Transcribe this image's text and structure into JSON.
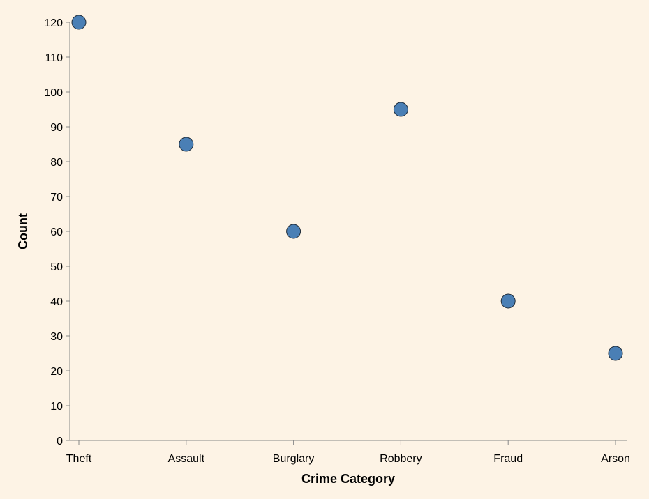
{
  "chart_data": {
    "type": "scatter",
    "title": "",
    "xlabel": "Crime Category",
    "ylabel": "Count",
    "categories": [
      "Theft",
      "Assault",
      "Burglary",
      "Robbery",
      "Fraud",
      "Arson"
    ],
    "values": [
      120,
      85,
      60,
      95,
      40,
      25
    ],
    "ylim": [
      0,
      120
    ],
    "yticks": [
      0,
      10,
      20,
      30,
      40,
      50,
      60,
      70,
      80,
      90,
      100,
      110,
      120
    ],
    "grid": false,
    "legend": "none",
    "colors": {
      "background": "#fdf3e5",
      "point_fill": "#4a7fb5",
      "point_stroke": "#1f2b38",
      "axis": "#888888"
    }
  }
}
